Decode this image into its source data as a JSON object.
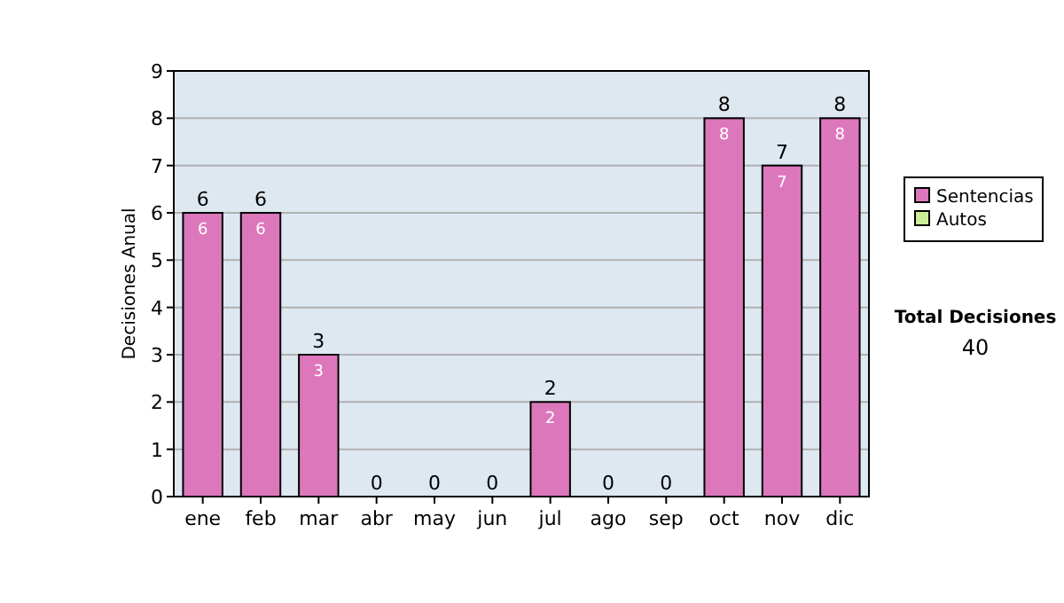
{
  "chart_data": {
    "type": "bar",
    "stacked": true,
    "ylabel": "Decisiones Anual",
    "categories": [
      "ene",
      "feb",
      "mar",
      "abr",
      "may",
      "jun",
      "jul",
      "ago",
      "sep",
      "oct",
      "nov",
      "dic"
    ],
    "series": [
      {
        "name": "Sentencias",
        "color": "#dd77bb",
        "values": [
          6,
          6,
          3,
          0,
          0,
          0,
          2,
          0,
          0,
          8,
          7,
          8
        ],
        "value_labels": [
          "6",
          "6",
          "3",
          null,
          null,
          null,
          "2",
          null,
          null,
          "8",
          "7",
          "8"
        ]
      },
      {
        "name": "Autos",
        "color": "#ccee99",
        "values": [
          0,
          0,
          0,
          0,
          0,
          0,
          0,
          0,
          0,
          0,
          0,
          0
        ]
      }
    ],
    "totals": [
      "6",
      "6",
      "3",
      "0",
      "0",
      "0",
      "2",
      "0",
      "0",
      "8",
      "7",
      "8"
    ],
    "ylim": [
      0,
      9
    ],
    "yticks": [
      0,
      1,
      2,
      3,
      4,
      5,
      6,
      7,
      8,
      9
    ],
    "grid": "y",
    "legend": "right",
    "annotations": [
      "Total Decisiones",
      "40"
    ]
  }
}
